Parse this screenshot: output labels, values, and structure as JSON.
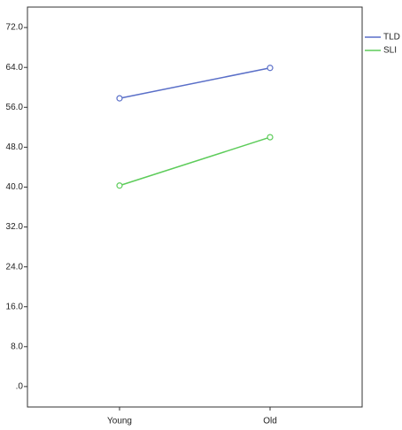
{
  "chart_data": {
    "type": "line",
    "categories": [
      "Young",
      "Old"
    ],
    "series": [
      {
        "name": "TLD",
        "color": "#5a6fc8",
        "values": [
          57.8,
          63.9
        ]
      },
      {
        "name": "SLI",
        "color": "#5dcc5a",
        "values": [
          40.3,
          50.0
        ]
      }
    ],
    "ylim": [
      -4.1,
      76.1
    ],
    "yticks": [
      {
        "value": 0,
        "label": ".0"
      },
      {
        "value": 8,
        "label": "8.0"
      },
      {
        "value": 16,
        "label": "16.0"
      },
      {
        "value": 24,
        "label": "24.0"
      },
      {
        "value": 32,
        "label": "32.0"
      },
      {
        "value": 40,
        "label": "40.0"
      },
      {
        "value": 48,
        "label": "48.0"
      },
      {
        "value": 56,
        "label": "56.0"
      },
      {
        "value": 64,
        "label": "64.0"
      },
      {
        "value": 72,
        "label": "72.0"
      }
    ],
    "legend": "top-right"
  }
}
